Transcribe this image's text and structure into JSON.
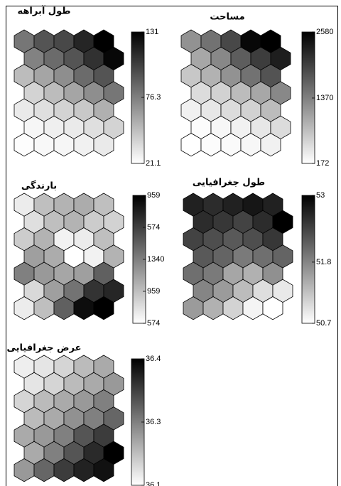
{
  "chart_data": [
    {
      "type": "hexmap",
      "title": "طول آبراهه",
      "clim": [
        21.1,
        131
      ],
      "cticks": [
        21.1,
        76.3,
        131
      ],
      "color_range": [
        "#ffffff",
        "#000000"
      ],
      "values": [
        [
          80,
          95,
          100,
          115,
          131
        ],
        [
          75,
          85,
          95,
          110,
          128
        ],
        [
          50,
          60,
          70,
          85,
          95
        ],
        [
          40,
          50,
          60,
          70,
          80
        ],
        [
          30,
          35,
          40,
          45,
          55
        ],
        [
          25,
          28,
          30,
          35,
          40
        ],
        [
          22,
          24,
          25,
          27,
          30
        ]
      ]
    },
    {
      "type": "hexmap",
      "title": "مساحت",
      "clim": [
        172,
        2580
      ],
      "cticks": [
        172,
        1370,
        2580
      ],
      "color_range": [
        "#ffffff",
        "#000000"
      ],
      "values": [
        [
          1200,
          1500,
          1900,
          2500,
          2580
        ],
        [
          1000,
          1300,
          1700,
          2000,
          2300
        ],
        [
          700,
          900,
          1200,
          1500,
          1800
        ],
        [
          500,
          600,
          800,
          1000,
          1300
        ],
        [
          300,
          400,
          500,
          600,
          800
        ],
        [
          200,
          250,
          300,
          400,
          500
        ],
        [
          172,
          200,
          220,
          250,
          300
        ]
      ]
    },
    {
      "type": "hexmap",
      "title": "بارندگی",
      "clim": [
        0,
        4
      ],
      "cticks": [
        {
          "value": 0,
          "label": "574"
        },
        {
          "value": 1,
          "label": "959"
        },
        {
          "value": 2,
          "label": "1340"
        },
        {
          "value": 3,
          "label": "574"
        },
        {
          "value": 4,
          "label": "959"
        }
      ],
      "color_range": [
        "#ffffff",
        "#000000"
      ],
      "values": [
        [
          0.3,
          1.0,
          1.2,
          1.3,
          1.0
        ],
        [
          0.5,
          1.0,
          1.2,
          0.8,
          0.7
        ],
        [
          0.8,
          1.2,
          0.2,
          0.3,
          1.0
        ],
        [
          1.5,
          1.3,
          0,
          0.2,
          1.2
        ],
        [
          2.0,
          1.6,
          1.4,
          1.5,
          2.5
        ],
        [
          0.6,
          1.5,
          2.2,
          3.2,
          3.4
        ],
        [
          0.3,
          1.0,
          2.5,
          3.8,
          4.0
        ]
      ]
    },
    {
      "type": "hexmap",
      "title": "طول جغرافیایی",
      "clim": [
        50.7,
        53
      ],
      "cticks": [
        50.7,
        51.8,
        53
      ],
      "color_range": [
        "#ffffff",
        "#000000"
      ],
      "values": [
        [
          52.7,
          52.6,
          52.7,
          52.8,
          52.7
        ],
        [
          52.6,
          52.5,
          52.4,
          52.6,
          53
        ],
        [
          52.4,
          52.3,
          52.2,
          52.3,
          52.5
        ],
        [
          52.2,
          52.1,
          51.9,
          52.0,
          52.1
        ],
        [
          52.0,
          51.9,
          51.5,
          51.4,
          51.7
        ],
        [
          51.8,
          51.6,
          51.3,
          51.0,
          50.9
        ],
        [
          51.6,
          51.4,
          51.1,
          50.8,
          50.7
        ]
      ]
    },
    {
      "type": "hexmap",
      "title": "عرض جغرافیایی",
      "clim": [
        36.1,
        36.4
      ],
      "cticks": [
        36.1,
        {
          "value": 36.25,
          "label": "36.3"
        },
        36.4
      ],
      "color_range": [
        "#ffffff",
        "#000000"
      ],
      "values": [
        [
          36.12,
          36.13,
          36.15,
          36.18,
          36.2
        ],
        [
          36.13,
          36.15,
          36.18,
          36.2,
          36.22
        ],
        [
          36.15,
          36.18,
          36.2,
          36.22,
          36.25
        ],
        [
          36.18,
          36.2,
          36.23,
          36.25,
          36.28
        ],
        [
          36.2,
          36.22,
          36.25,
          36.3,
          36.33
        ],
        [
          36.2,
          36.25,
          36.3,
          36.35,
          36.4
        ],
        [
          36.22,
          36.28,
          36.33,
          36.36,
          36.38
        ]
      ]
    }
  ]
}
